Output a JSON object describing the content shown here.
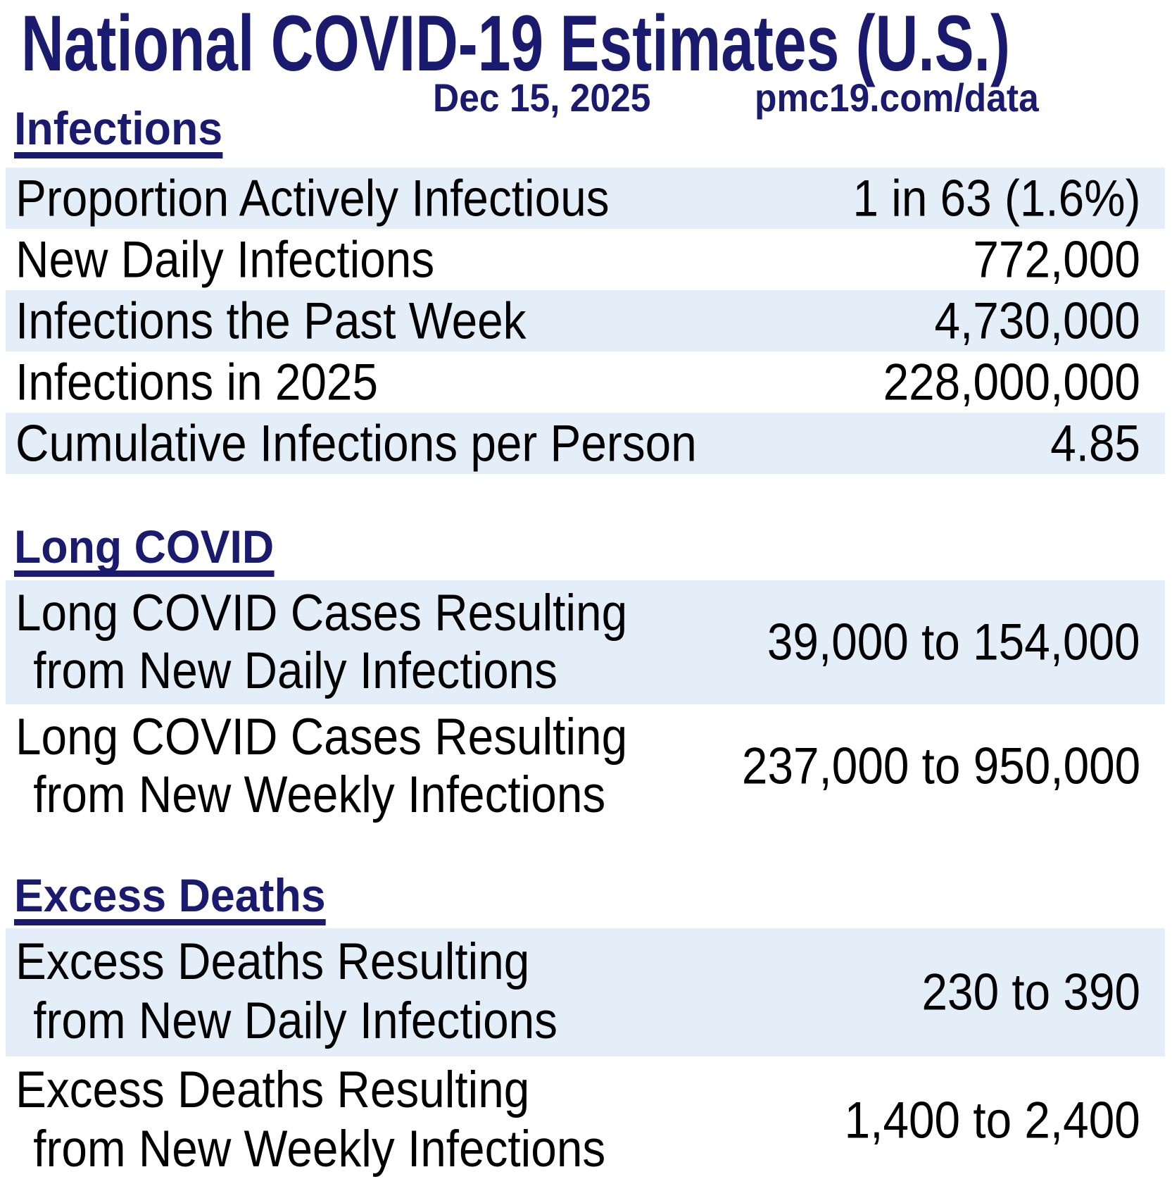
{
  "colors": {
    "navy": "#1a1a6e",
    "row_highlight": "#e4eef9",
    "text": "#000000",
    "background": "#ffffff"
  },
  "chart_data": {
    "type": "table",
    "title": "National COVID-19 Estimates (U.S.)",
    "date": "Dec 15, 2025",
    "source": "pmc19.com/data",
    "sections": [
      {
        "heading": "Infections",
        "rows": [
          {
            "label": "Proportion Actively Infectious",
            "value": "1 in 63 (1.6%)",
            "highlighted": true
          },
          {
            "label": "New Daily Infections",
            "value": "772,000",
            "highlighted": false
          },
          {
            "label": "Infections the Past Week",
            "value": "4,730,000",
            "highlighted": true
          },
          {
            "label": "Infections in 2025",
            "value": "228,000,000",
            "highlighted": false
          },
          {
            "label": "Cumulative Infections per Person",
            "value": "4.85",
            "highlighted": true
          }
        ]
      },
      {
        "heading": "Long COVID",
        "rows": [
          {
            "label_line1": "Long COVID Cases Resulting",
            "label_line2": "from New Daily Infections",
            "value": "39,000 to 154,000",
            "highlighted": true
          },
          {
            "label_line1": "Long COVID Cases Resulting",
            "label_line2": "from New Weekly Infections",
            "value": "237,000 to 950,000",
            "highlighted": false
          }
        ]
      },
      {
        "heading": "Excess Deaths",
        "rows": [
          {
            "label_line1": "Excess Deaths Resulting",
            "label_line2": "from New Daily Infections",
            "value": "230 to 390",
            "highlighted": true
          },
          {
            "label_line1": "Excess Deaths Resulting",
            "label_line2": "from New Weekly Infections",
            "value": "1,400 to 2,400",
            "highlighted": false
          }
        ]
      }
    ]
  }
}
